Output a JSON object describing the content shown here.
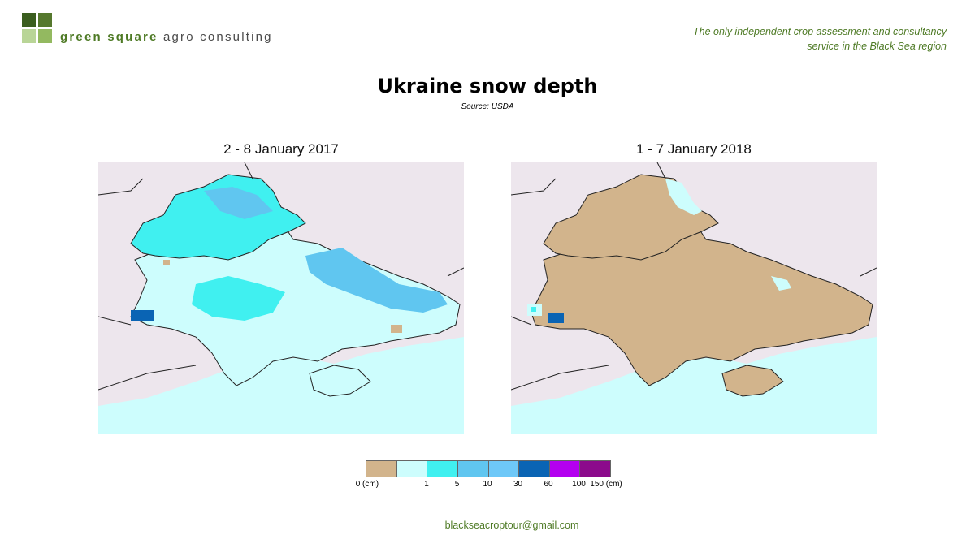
{
  "header": {
    "brand_accent": "green square",
    "brand_rest": " agro consulting",
    "tagline_line1": "The only independent crop assessment and consultancy",
    "tagline_line2": "service in the Black Sea region"
  },
  "title": "Ukraine snow depth",
  "subtitle": "Source: USDA",
  "maps": [
    {
      "caption": "2 - 8 January 2017",
      "dominant_class": "1-5",
      "secondary_class": "5-10",
      "deep_class": "30-60"
    },
    {
      "caption": "1 - 7 January 2018",
      "dominant_class": "0",
      "secondary_class": "1-5",
      "deep_class": "30-60"
    }
  ],
  "legend": {
    "colors": [
      "#d2b48c",
      "#cdfdfd",
      "#40f0f0",
      "#60c6f0",
      "#6ec8f8",
      "#0a64b4",
      "#b400f0",
      "#8c0a8c"
    ],
    "labels": [
      "0 (cm)",
      "1",
      "5",
      "10",
      "30",
      "60",
      "100",
      "150 (cm)"
    ]
  },
  "colors": {
    "accent_green": "#4e7a25",
    "background_land": "#ede6ed",
    "sea": "#cdfdfd",
    "no_snow": "#d2b48c"
  },
  "footer": {
    "email": "blackseacroptour@gmail.com"
  }
}
